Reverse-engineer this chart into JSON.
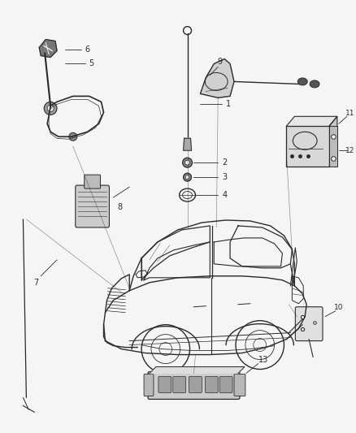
{
  "background_color": "#f5f5f5",
  "line_color": "#2a2a2a",
  "label_color": "#2a2a2a",
  "fig_width": 4.38,
  "fig_height": 5.33,
  "dpi": 100
}
